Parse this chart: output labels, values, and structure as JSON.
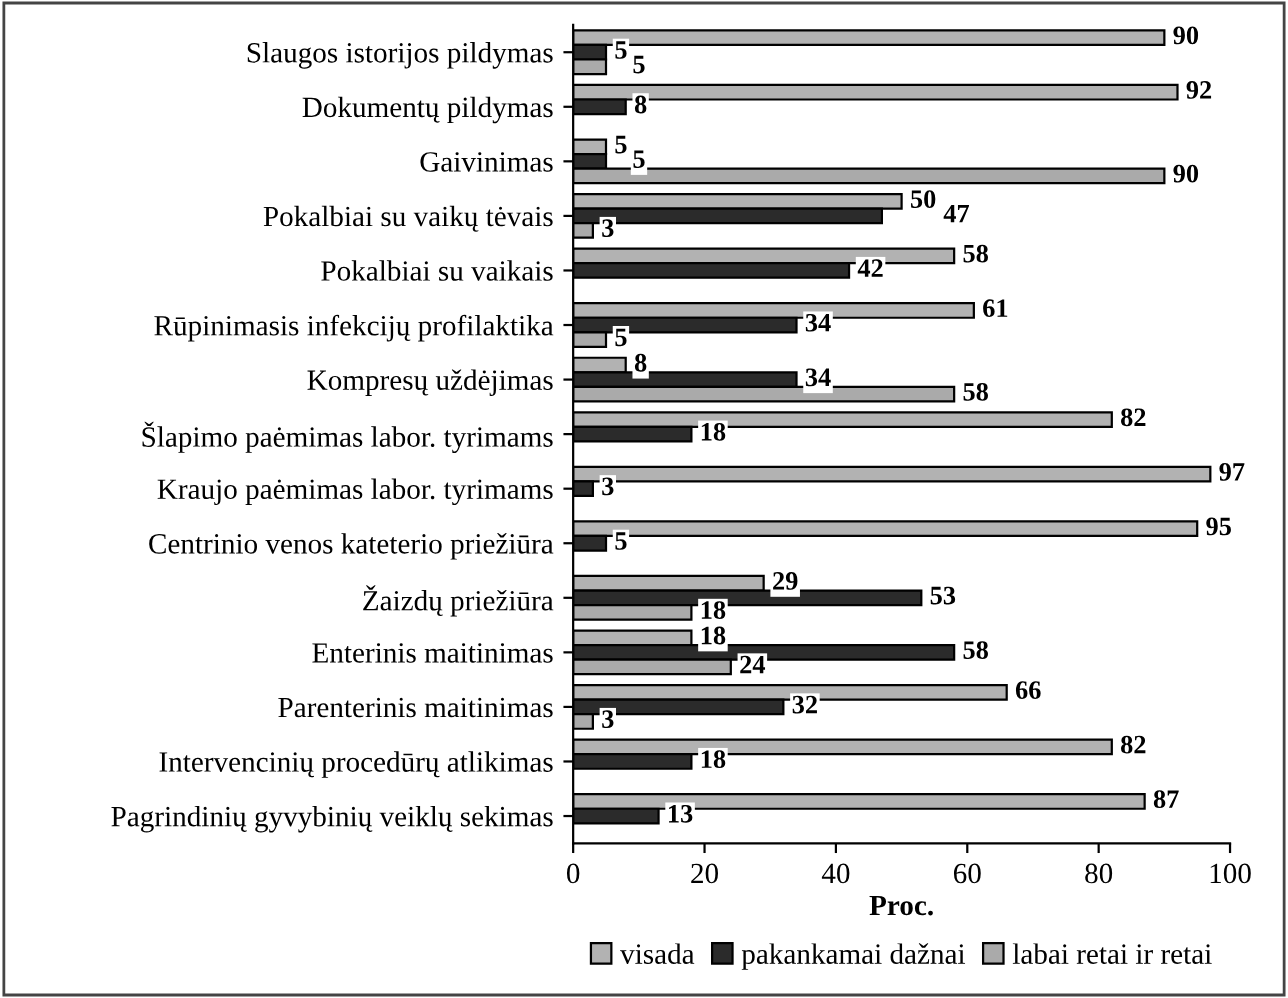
{
  "chart_data": {
    "type": "bar",
    "orientation": "horizontal",
    "xlabel": "Proc.",
    "xlim": [
      0,
      100
    ],
    "xticks": [
      0,
      20,
      40,
      60,
      80,
      100
    ],
    "grid": false,
    "legend": "bottom",
    "categories": [
      "Slaugos istorijos pildymas",
      "Dokumentų pildymas",
      "Gaivinimas",
      "Pokalbiai su vaikų tėvais",
      "Pokalbiai su vaikais",
      "Rūpinimasis infekcijų profilaktika",
      "Kompresų uždėjimas",
      "Šlapimo paėmimas labor. tyrimams",
      "Kraujo paėmimas labor. tyrimams",
      "Centrinio venos kateterio priežiūra",
      "Žaizdų priežiūra",
      "Enterinis maitinimas",
      "Parenterinis maitinimas",
      "Intervencinių procedūrų atlikimas",
      "Pagrindinių gyvybinių veiklų sekimas"
    ],
    "series": [
      {
        "name": "visada",
        "color": "#b2b2b2",
        "values": [
          90,
          92,
          5,
          50,
          58,
          61,
          8,
          82,
          97,
          95,
          29,
          18,
          66,
          82,
          87
        ],
        "value_labels": [
          "90",
          "92",
          "5",
          "50",
          "58",
          "61",
          "8",
          "82",
          "97",
          "95",
          "29",
          "18",
          "66",
          "82",
          "87"
        ]
      },
      {
        "name": "pakankamai dažnai",
        "color": "#2b2b2b",
        "values": [
          5,
          8,
          5,
          47,
          42,
          34,
          34,
          18,
          3,
          5,
          53,
          58,
          32,
          18,
          13
        ],
        "value_labels": [
          "5",
          "8",
          "5",
          "47",
          "42",
          "34",
          "34",
          "18",
          "3",
          "5",
          "53",
          "58",
          "32",
          "18",
          "13"
        ]
      },
      {
        "name": "labai retai ir retai",
        "color": "#aaaaaa",
        "values": [
          5,
          null,
          90,
          3,
          null,
          5,
          58,
          null,
          null,
          null,
          18,
          24,
          3,
          null,
          null
        ],
        "value_labels": [
          "5",
          null,
          "90",
          "3",
          null,
          "5",
          "58",
          null,
          null,
          null,
          "18",
          "24",
          "3",
          null,
          null
        ]
      }
    ]
  }
}
